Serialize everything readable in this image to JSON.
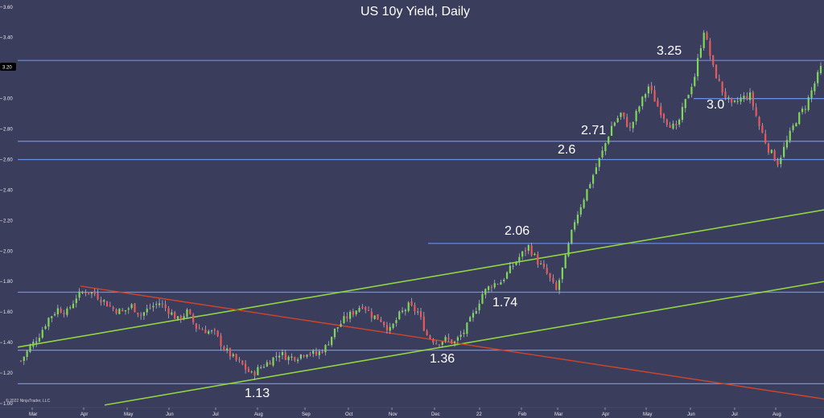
{
  "chart_data": {
    "type": "candlestick",
    "title": "US 10y Yield, Daily",
    "copyright": "© 2022 NinjaTrader, LLC",
    "ylim": [
      1.0,
      3.62
    ],
    "y_ticks": [
      "3.60",
      "3.40",
      "3.20",
      "3.00",
      "2.80",
      "2.60",
      "2.40",
      "2.20",
      "2.00",
      "1.80",
      "1.60",
      "1.40",
      "1.20",
      "1.00"
    ],
    "x_ticks": [
      "Mar",
      "Apr",
      "May",
      "Jun",
      "Jul",
      "Aug",
      "Sep",
      "Oct",
      "Nov",
      "Dec",
      "22",
      "Feb",
      "Mar",
      "Apr",
      "May",
      "Jun",
      "Jul",
      "Aug"
    ],
    "current_price_label": "3.20",
    "colors": {
      "background": "#3b3d5c",
      "up_candle": "#7dd957",
      "down_candle": "#e85a5a",
      "horizontal_level": "#6a8fe8",
      "support_trendline": "#8fd640",
      "resistance_trendline": "#d2452a"
    },
    "horizontal_levels": [
      3.25,
      2.72,
      2.6,
      2.05,
      1.73,
      1.35,
      1.13,
      3.0
    ],
    "trendlines": [
      {
        "name": "upper green",
        "from": [
          "Feb 2021",
          1.37
        ],
        "to": [
          "Sep 2022",
          2.27
        ]
      },
      {
        "name": "lower green",
        "from": [
          "Apr 2021",
          0.99
        ],
        "to": [
          "Sep 2022",
          1.8
        ]
      },
      {
        "name": "red",
        "from": [
          "Apr 2021",
          1.77
        ],
        "to": [
          "Sep 2022",
          1.03
        ]
      }
    ],
    "annotations": [
      "3.25",
      "3.0",
      "2.71",
      "2.6",
      "2.06",
      "1.74",
      "1.36",
      "1.13"
    ],
    "series_points": [
      [
        0,
        1.28
      ],
      [
        6,
        1.37
      ],
      [
        12,
        1.45
      ],
      [
        18,
        1.56
      ],
      [
        24,
        1.62
      ],
      [
        30,
        1.6
      ],
      [
        36,
        1.7
      ],
      [
        42,
        1.74
      ],
      [
        48,
        1.72
      ],
      [
        54,
        1.67
      ],
      [
        60,
        1.62
      ],
      [
        66,
        1.6
      ],
      [
        72,
        1.64
      ],
      [
        78,
        1.58
      ],
      [
        84,
        1.63
      ],
      [
        90,
        1.66
      ],
      [
        96,
        1.61
      ],
      [
        102,
        1.55
      ],
      [
        108,
        1.6
      ],
      [
        114,
        1.5
      ],
      [
        120,
        1.48
      ],
      [
        126,
        1.46
      ],
      [
        132,
        1.36
      ],
      [
        138,
        1.3
      ],
      [
        144,
        1.25
      ],
      [
        150,
        1.19
      ],
      [
        156,
        1.24
      ],
      [
        162,
        1.28
      ],
      [
        168,
        1.33
      ],
      [
        174,
        1.3
      ],
      [
        180,
        1.31
      ],
      [
        186,
        1.34
      ],
      [
        192,
        1.32
      ],
      [
        198,
        1.37
      ],
      [
        204,
        1.48
      ],
      [
        210,
        1.55
      ],
      [
        216,
        1.6
      ],
      [
        222,
        1.65
      ],
      [
        228,
        1.58
      ],
      [
        234,
        1.55
      ],
      [
        240,
        1.48
      ],
      [
        246,
        1.58
      ],
      [
        252,
        1.64
      ],
      [
        258,
        1.6
      ],
      [
        264,
        1.45
      ],
      [
        270,
        1.4
      ],
      [
        276,
        1.42
      ],
      [
        282,
        1.4
      ],
      [
        288,
        1.47
      ],
      [
        294,
        1.58
      ],
      [
        300,
        1.72
      ],
      [
        306,
        1.78
      ],
      [
        312,
        1.8
      ],
      [
        318,
        1.88
      ],
      [
        324,
        1.96
      ],
      [
        330,
        2.03
      ],
      [
        336,
        1.93
      ],
      [
        342,
        1.85
      ],
      [
        348,
        1.74
      ],
      [
        354,
        1.95
      ],
      [
        360,
        2.2
      ],
      [
        366,
        2.35
      ],
      [
        372,
        2.5
      ],
      [
        378,
        2.65
      ],
      [
        384,
        2.82
      ],
      [
        390,
        2.9
      ],
      [
        396,
        2.8
      ],
      [
        402,
        2.95
      ],
      [
        408,
        3.08
      ],
      [
        414,
        2.95
      ],
      [
        420,
        2.85
      ],
      [
        426,
        2.8
      ],
      [
        432,
        2.98
      ],
      [
        438,
        3.15
      ],
      [
        444,
        3.45
      ],
      [
        450,
        3.2
      ],
      [
        456,
        3.05
      ],
      [
        462,
        2.95
      ],
      [
        468,
        3.0
      ],
      [
        474,
        3.02
      ],
      [
        480,
        2.82
      ],
      [
        486,
        2.67
      ],
      [
        492,
        2.58
      ],
      [
        498,
        2.72
      ],
      [
        504,
        2.86
      ],
      [
        510,
        2.95
      ],
      [
        516,
        3.1
      ],
      [
        520,
        3.2
      ]
    ]
  }
}
